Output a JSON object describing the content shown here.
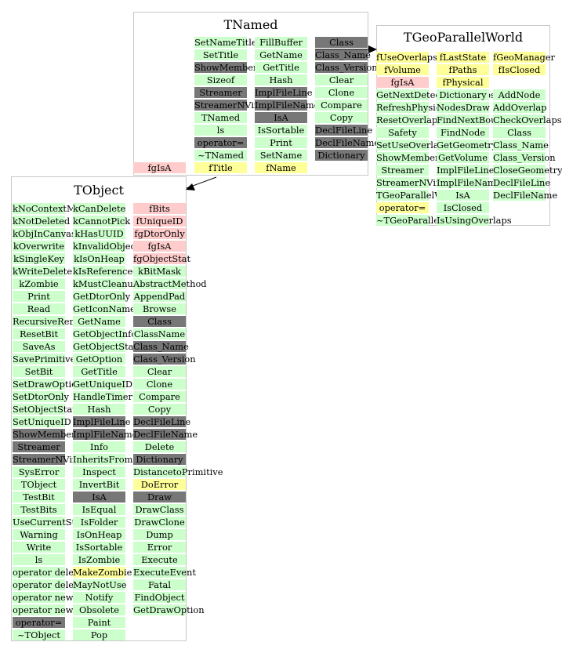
{
  "colors": {
    "public": "#ccffcc",
    "protected": "#ffff99",
    "private": "#ffcccc",
    "special": "#777777",
    "border": "#c8c8c8",
    "arrow": "#000000"
  },
  "tnamed": {
    "title": "TNamed",
    "columns": [
      [
        {
          "t": "SetNameTitle",
          "k": "pub"
        },
        {
          "t": "SetTitle",
          "k": "pub"
        },
        {
          "t": "ShowMembers",
          "k": "special"
        },
        {
          "t": "Sizeof",
          "k": "pub"
        },
        {
          "t": "Streamer",
          "k": "special"
        },
        {
          "t": "StreamerNVirtual",
          "k": "special"
        },
        {
          "t": "TNamed",
          "k": "pub"
        },
        {
          "t": "ls",
          "k": "pub"
        },
        {
          "t": "operator=",
          "k": "special"
        },
        {
          "t": "~TNamed",
          "k": "pub"
        },
        {
          "t": "fTitle",
          "k": "prot"
        }
      ],
      [
        {
          "t": "FillBuffer",
          "k": "pub"
        },
        {
          "t": "GetName",
          "k": "pub"
        },
        {
          "t": "GetTitle",
          "k": "pub"
        },
        {
          "t": "Hash",
          "k": "pub"
        },
        {
          "t": "ImplFileLine",
          "k": "special"
        },
        {
          "t": "ImplFileName",
          "k": "special"
        },
        {
          "t": "IsA",
          "k": "special"
        },
        {
          "t": "IsSortable",
          "k": "pub"
        },
        {
          "t": "Print",
          "k": "pub"
        },
        {
          "t": "SetName",
          "k": "pub"
        },
        {
          "t": "fName",
          "k": "prot"
        }
      ],
      [
        {
          "t": "Class",
          "k": "special"
        },
        {
          "t": "Class_Name",
          "k": "special"
        },
        {
          "t": "Class_Version",
          "k": "special"
        },
        {
          "t": "Clear",
          "k": "pub"
        },
        {
          "t": "Clone",
          "k": "pub"
        },
        {
          "t": "Compare",
          "k": "pub"
        },
        {
          "t": "Copy",
          "k": "pub"
        },
        {
          "t": "DeclFileLine",
          "k": "special"
        },
        {
          "t": "DeclFileName",
          "k": "special"
        },
        {
          "t": "Dictionary",
          "k": "special"
        }
      ]
    ],
    "outside": {
      "t": "fgIsA",
      "k": "priv"
    }
  },
  "tgeo": {
    "title": "TGeoParallelWorld",
    "columns": [
      [
        {
          "t": "fUseOverlaps",
          "k": "prot"
        },
        {
          "t": "fVolume",
          "k": "prot"
        },
        {
          "t": "fgIsA",
          "k": "priv"
        },
        {
          "t": "GetNextDetectedOverlaps",
          "k": "pub"
        },
        {
          "t": "RefreshPhysicalNodes",
          "k": "pub"
        },
        {
          "t": "ResetOverlaps",
          "k": "pub"
        },
        {
          "t": "Safety",
          "k": "pub"
        },
        {
          "t": "SetUseOverlaps",
          "k": "pub"
        },
        {
          "t": "ShowMembers",
          "k": "pub"
        },
        {
          "t": "Streamer",
          "k": "pub"
        },
        {
          "t": "StreamerNVirtual",
          "k": "pub"
        },
        {
          "t": "TGeoParallelWorld",
          "k": "pub"
        },
        {
          "t": "operator=",
          "k": "prot"
        },
        {
          "t": "~TGeoParallelWorld",
          "k": "pub"
        }
      ],
      [
        {
          "t": "fLastState",
          "k": "prot"
        },
        {
          "t": "fPaths",
          "k": "prot"
        },
        {
          "t": "fPhysical",
          "k": "prot"
        },
        {
          "t": "Dictionary",
          "k": "pub"
        },
        {
          "t": "NodesDraw",
          "k": "pub"
        },
        {
          "t": "FindNextBoundary",
          "k": "pub"
        },
        {
          "t": "FindNode",
          "k": "pub"
        },
        {
          "t": "GetGeometry",
          "k": "pub"
        },
        {
          "t": "GetVolume",
          "k": "pub"
        },
        {
          "t": "ImplFileLine",
          "k": "pub"
        },
        {
          "t": "ImplFileName",
          "k": "pub"
        },
        {
          "t": "IsA",
          "k": "pub"
        },
        {
          "t": "IsClosed",
          "k": "pub"
        },
        {
          "t": "IsUsingOverlaps",
          "k": "pub"
        }
      ],
      [
        {
          "t": "fGeoManager",
          "k": "prot"
        },
        {
          "t": "fIsClosed",
          "k": "prot"
        },
        {
          "t": "",
          "k": "none"
        },
        {
          "t": "AddNode",
          "k": "pub"
        },
        {
          "t": "AddOverlap",
          "k": "pub"
        },
        {
          "t": "CheckOverlaps",
          "k": "pub"
        },
        {
          "t": "Class",
          "k": "pub"
        },
        {
          "t": "Class_Name",
          "k": "pub"
        },
        {
          "t": "Class_Version",
          "k": "pub"
        },
        {
          "t": "CloseGeometry",
          "k": "pub"
        },
        {
          "t": "DeclFileLine",
          "k": "pub"
        },
        {
          "t": "DeclFileName",
          "k": "pub"
        }
      ]
    ]
  },
  "tobject": {
    "title": "TObject",
    "columns": [
      [
        {
          "t": "kNoContextMenu",
          "k": "pub"
        },
        {
          "t": "kNotDeleted",
          "k": "pub"
        },
        {
          "t": "kObjInCanvas",
          "k": "pub"
        },
        {
          "t": "kOverwrite",
          "k": "pub"
        },
        {
          "t": "kSingleKey",
          "k": "pub"
        },
        {
          "t": "kWriteDelete",
          "k": "pub"
        },
        {
          "t": "kZombie",
          "k": "pub"
        },
        {
          "t": "Print",
          "k": "pub"
        },
        {
          "t": "Read",
          "k": "pub"
        },
        {
          "t": "RecursiveRemove",
          "k": "pub"
        },
        {
          "t": "ResetBit",
          "k": "pub"
        },
        {
          "t": "SaveAs",
          "k": "pub"
        },
        {
          "t": "SavePrimitive",
          "k": "pub"
        },
        {
          "t": "SetBit",
          "k": "pub"
        },
        {
          "t": "SetDrawOption",
          "k": "pub"
        },
        {
          "t": "SetDtorOnly",
          "k": "pub"
        },
        {
          "t": "SetObjectStat",
          "k": "pub"
        },
        {
          "t": "SetUniqueID",
          "k": "pub"
        },
        {
          "t": "ShowMembers",
          "k": "special"
        },
        {
          "t": "Streamer",
          "k": "special"
        },
        {
          "t": "StreamerNVirtual",
          "k": "special"
        },
        {
          "t": "SysError",
          "k": "pub"
        },
        {
          "t": "TObject",
          "k": "pub"
        },
        {
          "t": "TestBit",
          "k": "pub"
        },
        {
          "t": "TestBits",
          "k": "pub"
        },
        {
          "t": "UseCurrentStyle",
          "k": "pub"
        },
        {
          "t": "Warning",
          "k": "pub"
        },
        {
          "t": "Write",
          "k": "pub"
        },
        {
          "t": "ls",
          "k": "pub"
        },
        {
          "t": "operator delete",
          "k": "pub"
        },
        {
          "t": "operator delete[]",
          "k": "pub"
        },
        {
          "t": "operator new",
          "k": "pub"
        },
        {
          "t": "operator new[]",
          "k": "pub"
        },
        {
          "t": "operator=",
          "k": "special"
        },
        {
          "t": "~TObject",
          "k": "pub"
        }
      ],
      [
        {
          "t": "kCanDelete",
          "k": "pub"
        },
        {
          "t": "kCannotPick",
          "k": "pub"
        },
        {
          "t": "kHasUUID",
          "k": "pub"
        },
        {
          "t": "kInvalidObject",
          "k": "pub"
        },
        {
          "t": "kIsOnHeap",
          "k": "pub"
        },
        {
          "t": "kIsReferenced",
          "k": "pub"
        },
        {
          "t": "kMustCleanup",
          "k": "pub"
        },
        {
          "t": "GetDtorOnly",
          "k": "pub"
        },
        {
          "t": "GetIconName",
          "k": "pub"
        },
        {
          "t": "GetName",
          "k": "pub"
        },
        {
          "t": "GetObjectInfo",
          "k": "pub"
        },
        {
          "t": "GetObjectStat",
          "k": "pub"
        },
        {
          "t": "GetOption",
          "k": "pub"
        },
        {
          "t": "GetTitle",
          "k": "pub"
        },
        {
          "t": "GetUniqueID",
          "k": "pub"
        },
        {
          "t": "HandleTimer",
          "k": "pub"
        },
        {
          "t": "Hash",
          "k": "pub"
        },
        {
          "t": "ImplFileLine",
          "k": "special"
        },
        {
          "t": "ImplFileName",
          "k": "special"
        },
        {
          "t": "Info",
          "k": "pub"
        },
        {
          "t": "InheritsFrom",
          "k": "pub"
        },
        {
          "t": "Inspect",
          "k": "pub"
        },
        {
          "t": "InvertBit",
          "k": "pub"
        },
        {
          "t": "IsA",
          "k": "special"
        },
        {
          "t": "IsEqual",
          "k": "pub"
        },
        {
          "t": "IsFolder",
          "k": "pub"
        },
        {
          "t": "IsOnHeap",
          "k": "pub"
        },
        {
          "t": "IsSortable",
          "k": "pub"
        },
        {
          "t": "IsZombie",
          "k": "pub"
        },
        {
          "t": "MakeZombie",
          "k": "prot"
        },
        {
          "t": "MayNotUse",
          "k": "pub"
        },
        {
          "t": "Notify",
          "k": "pub"
        },
        {
          "t": "Obsolete",
          "k": "pub"
        },
        {
          "t": "Paint",
          "k": "pub"
        },
        {
          "t": "Pop",
          "k": "pub"
        }
      ],
      [
        {
          "t": "fBits",
          "k": "priv"
        },
        {
          "t": "fUniqueID",
          "k": "priv"
        },
        {
          "t": "fgDtorOnly",
          "k": "priv"
        },
        {
          "t": "fgIsA",
          "k": "priv"
        },
        {
          "t": "fgObjectStat",
          "k": "priv"
        },
        {
          "t": "kBitMask",
          "k": "pub"
        },
        {
          "t": "AbstractMethod",
          "k": "pub"
        },
        {
          "t": "AppendPad",
          "k": "pub"
        },
        {
          "t": "Browse",
          "k": "pub"
        },
        {
          "t": "Class",
          "k": "special"
        },
        {
          "t": "ClassName",
          "k": "pub"
        },
        {
          "t": "Class_Name",
          "k": "special"
        },
        {
          "t": "Class_Version",
          "k": "special"
        },
        {
          "t": "Clear",
          "k": "pub"
        },
        {
          "t": "Clone",
          "k": "pub"
        },
        {
          "t": "Compare",
          "k": "pub"
        },
        {
          "t": "Copy",
          "k": "pub"
        },
        {
          "t": "DeclFileLine",
          "k": "special"
        },
        {
          "t": "DeclFileName",
          "k": "special"
        },
        {
          "t": "Delete",
          "k": "pub"
        },
        {
          "t": "Dictionary",
          "k": "special"
        },
        {
          "t": "DistancetoPrimitive",
          "k": "pub"
        },
        {
          "t": "DoError",
          "k": "prot"
        },
        {
          "t": "Draw",
          "k": "special"
        },
        {
          "t": "DrawClass",
          "k": "pub"
        },
        {
          "t": "DrawClone",
          "k": "pub"
        },
        {
          "t": "Dump",
          "k": "pub"
        },
        {
          "t": "Error",
          "k": "pub"
        },
        {
          "t": "Execute",
          "k": "pub"
        },
        {
          "t": "ExecuteEvent",
          "k": "pub"
        },
        {
          "t": "Fatal",
          "k": "pub"
        },
        {
          "t": "FindObject",
          "k": "pub"
        },
        {
          "t": "GetDrawOption",
          "k": "pub"
        }
      ]
    ]
  }
}
